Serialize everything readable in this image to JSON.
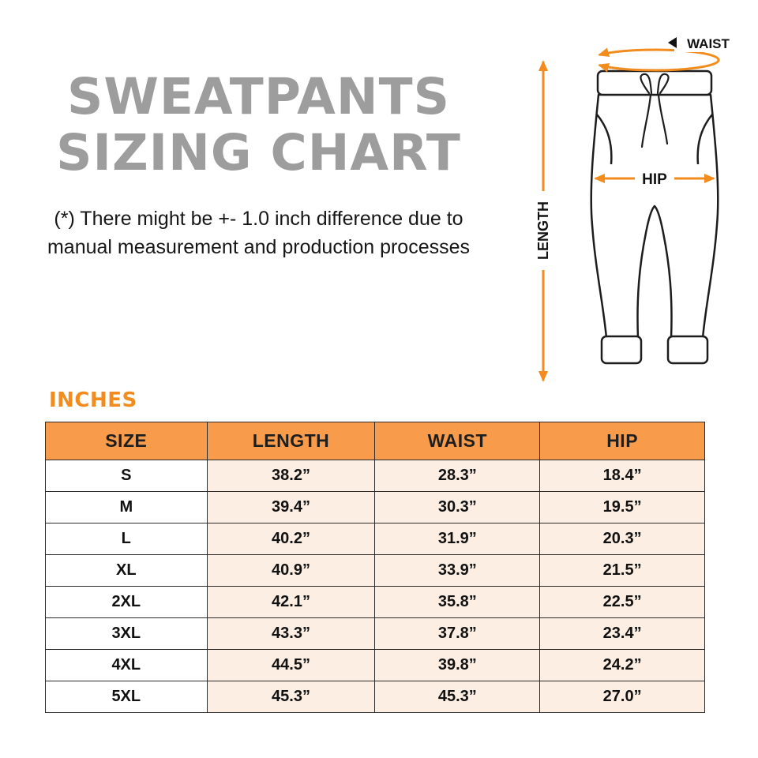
{
  "title": {
    "line1": "SWEATPANTS",
    "line2": "SIZING CHART"
  },
  "note": {
    "line1": "(*) There might be +- 1.0 inch difference due to",
    "line2": "manual measurement and production processes"
  },
  "units_label": "INCHES",
  "diagram": {
    "waist_label": "WAIST",
    "hip_label": "HIP",
    "length_label": "LENGTH"
  },
  "chart_data": {
    "type": "table",
    "columns": [
      "SIZE",
      "LENGTH",
      "WAIST",
      "HIP"
    ],
    "rows": [
      [
        "S",
        "38.2”",
        "28.3”",
        "18.4”"
      ],
      [
        "M",
        "39.4”",
        "30.3”",
        "19.5”"
      ],
      [
        "L",
        "40.2”",
        "31.9”",
        "20.3”"
      ],
      [
        "XL",
        "40.9”",
        "33.9”",
        "21.5”"
      ],
      [
        "2XL",
        "42.1”",
        "35.8”",
        "22.5”"
      ],
      [
        "3XL",
        "43.3”",
        "37.8”",
        "23.4”"
      ],
      [
        "4XL",
        "44.5”",
        "39.8”",
        "24.2”"
      ],
      [
        "5XL",
        "45.3”",
        "45.3”",
        "27.0”"
      ]
    ]
  },
  "colors": {
    "accent_orange": "#F28C1E",
    "table_header_bg": "#F89B4B",
    "table_row_bg": "#FCEEE3",
    "title_gray": "#9D9D9D",
    "line_black": "#1D1D1D"
  }
}
